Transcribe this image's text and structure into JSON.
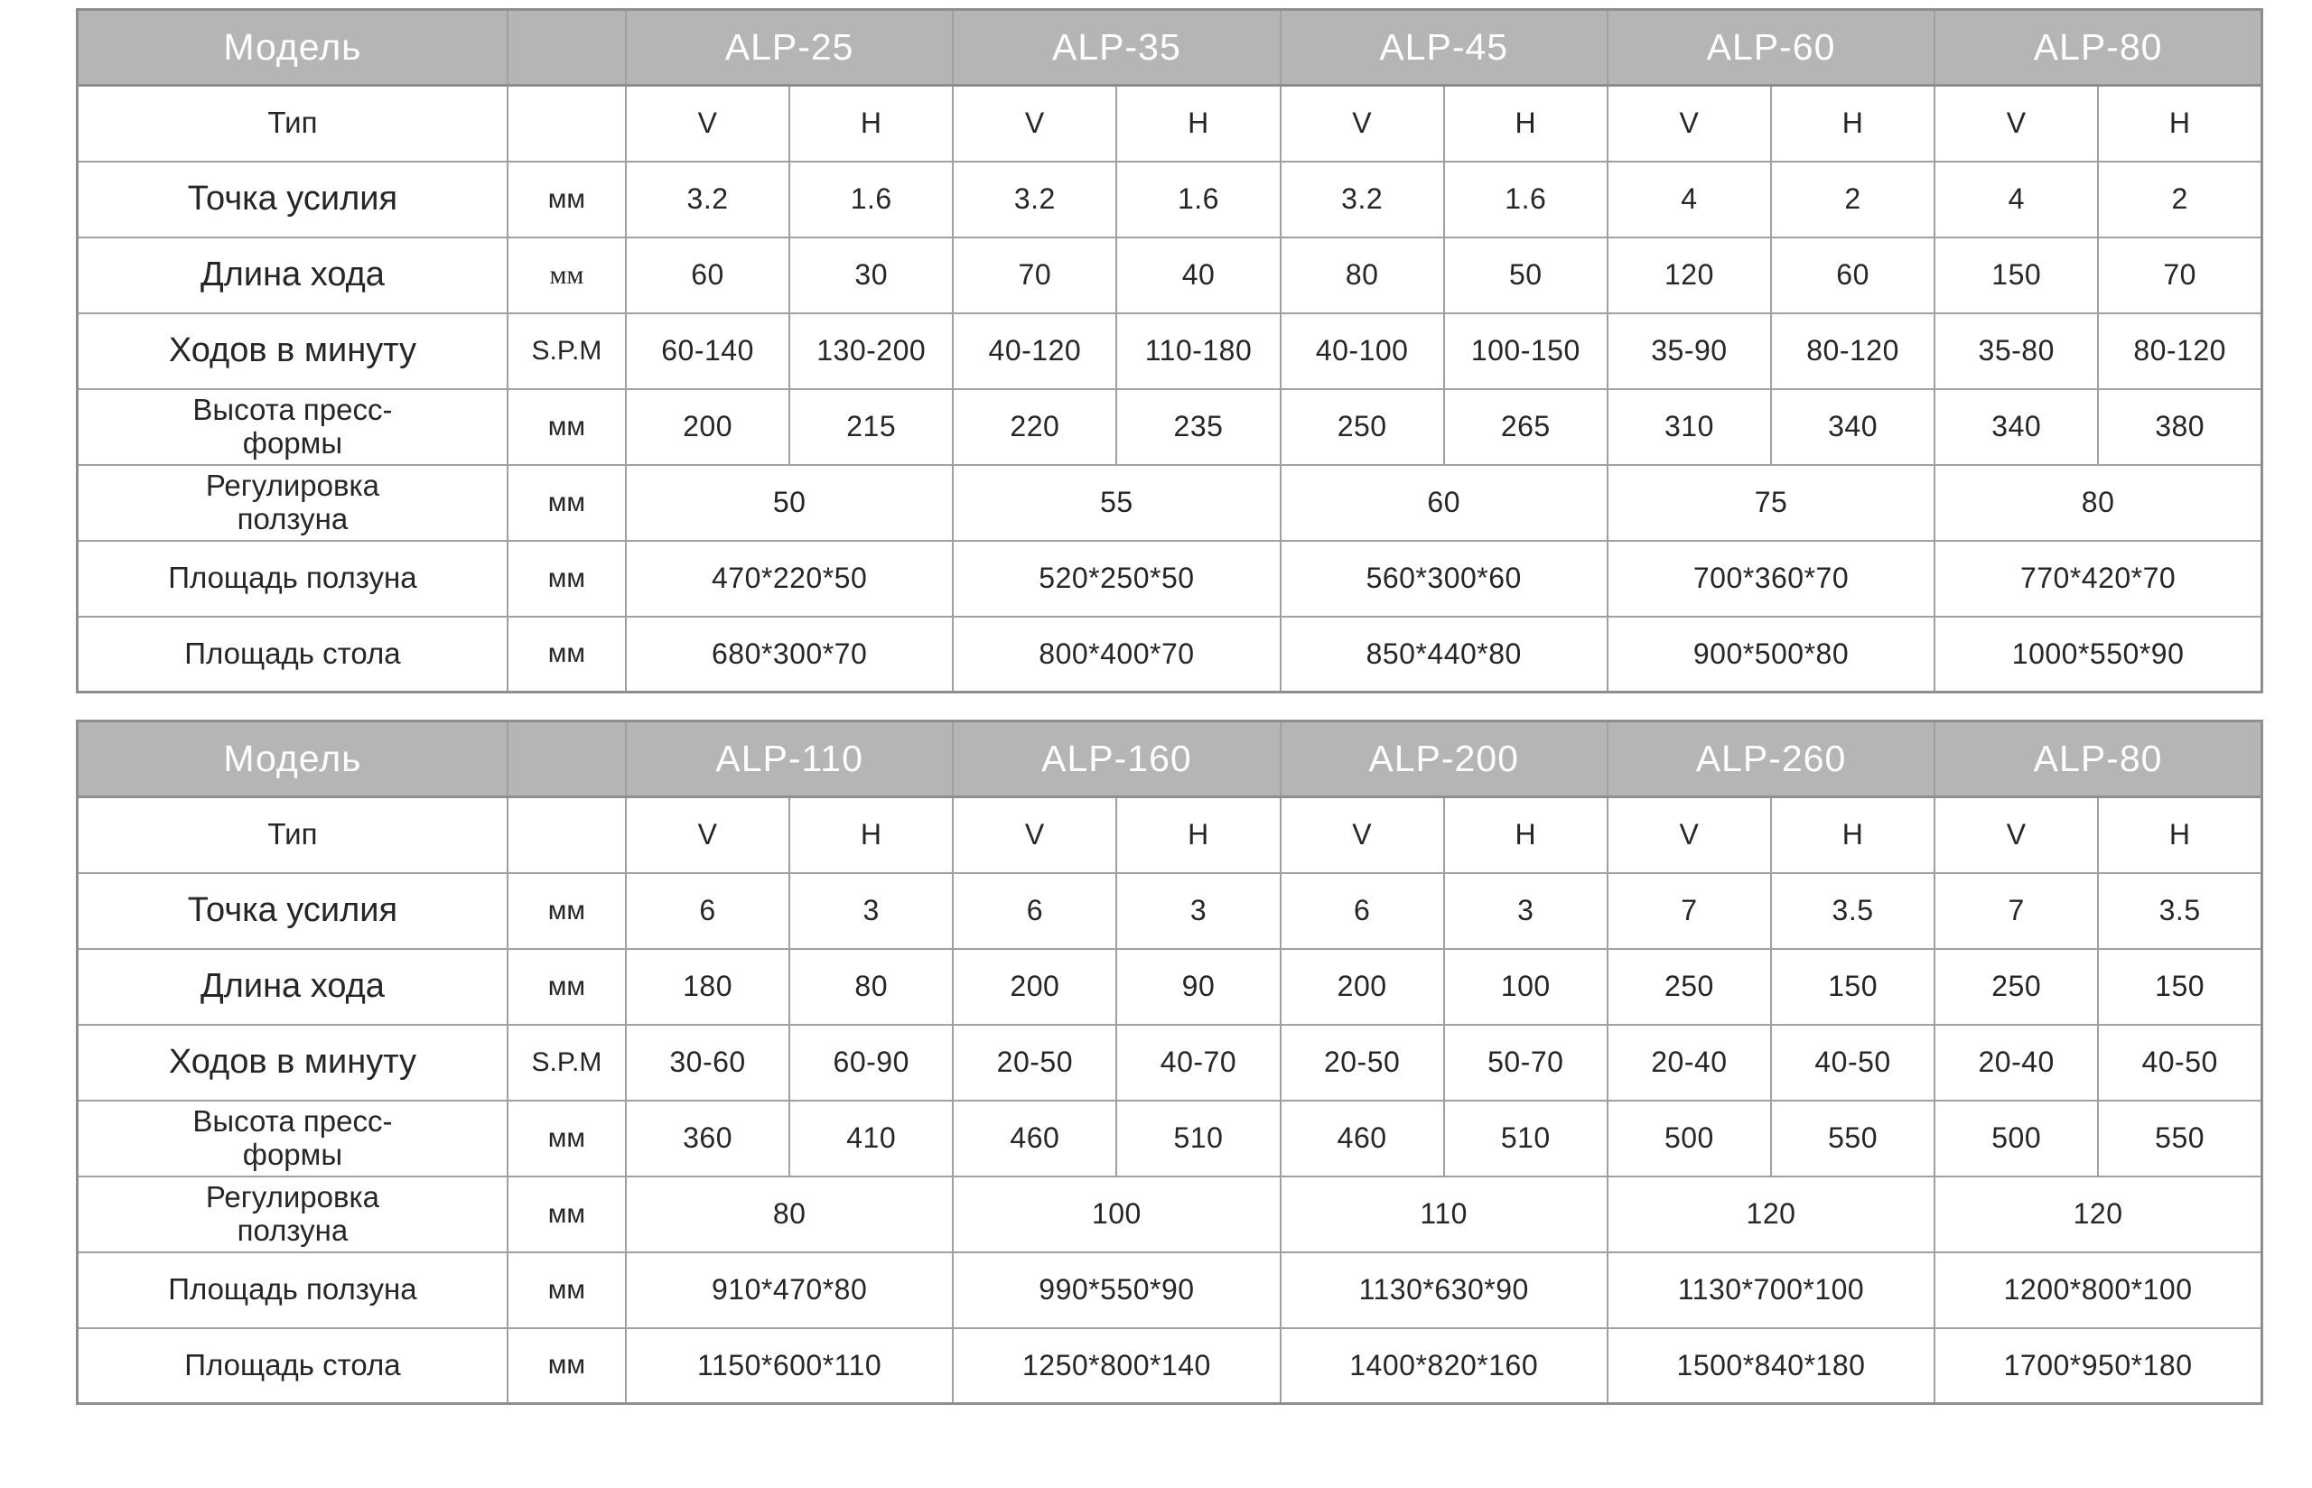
{
  "colors": {
    "header_bg": "#b5b5b5",
    "header_text": "#ffffff",
    "border": "#a0a0a0",
    "cell_text": "#262626"
  },
  "tables": [
    {
      "corner_label": "Модель",
      "unit_header": "",
      "models": [
        "ALP-25",
        "ALP-35",
        "ALP-45",
        "ALP-60",
        "ALP-80"
      ],
      "rows": [
        {
          "label": "Тип",
          "unit": "",
          "colspan": 1,
          "values": [
            "V",
            "H",
            "V",
            "H",
            "V",
            "H",
            "V",
            "H",
            "V",
            "H"
          ]
        },
        {
          "label": "Точка усилия",
          "unit": "мм",
          "colspan": 1,
          "values": [
            "3.2",
            "1.6",
            "3.2",
            "1.6",
            "3.2",
            "1.6",
            "4",
            "2",
            "4",
            "2"
          ]
        },
        {
          "label": "Длина хода",
          "unit": "мм",
          "colspan": 1,
          "values": [
            "60",
            "30",
            "70",
            "40",
            "80",
            "50",
            "120",
            "60",
            "150",
            "70"
          ]
        },
        {
          "label": "Ходов в минуту",
          "unit": "S.P.M",
          "colspan": 1,
          "values": [
            "60-140",
            "130-200",
            "40-120",
            "110-180",
            "40-100",
            "100-150",
            "35-90",
            "80-120",
            "35-80",
            "80-120"
          ]
        },
        {
          "label": "Высота пресс-\nформы",
          "unit": "мм",
          "colspan": 1,
          "values": [
            "200",
            "215",
            "220",
            "235",
            "250",
            "265",
            "310",
            "340",
            "340",
            "380"
          ]
        },
        {
          "label": "Регулировка\nползуна",
          "unit": "мм",
          "colspan": 2,
          "values": [
            "50",
            "55",
            "60",
            "75",
            "80"
          ]
        },
        {
          "label": "Площадь ползуна",
          "unit": "мм",
          "colspan": 2,
          "values": [
            "470*220*50",
            "520*250*50",
            "560*300*60",
            "700*360*70",
            "770*420*70"
          ]
        },
        {
          "label": "Площадь стола",
          "unit": "мм",
          "colspan": 2,
          "values": [
            "680*300*70",
            "800*400*70",
            "850*440*80",
            "900*500*80",
            "1000*550*90"
          ]
        }
      ]
    },
    {
      "corner_label": "Модель",
      "unit_header": "",
      "models": [
        "ALP-110",
        "ALP-160",
        "ALP-200",
        "ALP-260",
        "ALP-80"
      ],
      "rows": [
        {
          "label": "Тип",
          "unit": "",
          "colspan": 1,
          "values": [
            "V",
            "H",
            "V",
            "H",
            "V",
            "H",
            "V",
            "H",
            "V",
            "H"
          ]
        },
        {
          "label": "Точка усилия",
          "unit": "мм",
          "colspan": 1,
          "values": [
            "6",
            "3",
            "6",
            "3",
            "6",
            "3",
            "7",
            "3.5",
            "7",
            "3.5"
          ]
        },
        {
          "label": "Длина хода",
          "unit": "мм",
          "colspan": 1,
          "values": [
            "180",
            "80",
            "200",
            "90",
            "200",
            "100",
            "250",
            "150",
            "250",
            "150"
          ]
        },
        {
          "label": "Ходов в минуту",
          "unit": "S.P.M",
          "colspan": 1,
          "values": [
            "30-60",
            "60-90",
            "20-50",
            "40-70",
            "20-50",
            "50-70",
            "20-40",
            "40-50",
            "20-40",
            "40-50"
          ]
        },
        {
          "label": "Высота пресс-\nформы",
          "unit": "мм",
          "colspan": 1,
          "values": [
            "360",
            "410",
            "460",
            "510",
            "460",
            "510",
            "500",
            "550",
            "500",
            "550"
          ]
        },
        {
          "label": "Регулировка\nползуна",
          "unit": "мм",
          "colspan": 2,
          "values": [
            "80",
            "100",
            "110",
            "120",
            "120"
          ]
        },
        {
          "label": "Площадь ползуна",
          "unit": "мм",
          "colspan": 2,
          "values": [
            "910*470*80",
            "990*550*90",
            "1130*630*90",
            "1130*700*100",
            "1200*800*100"
          ]
        },
        {
          "label": "Площадь стола",
          "unit": "мм",
          "colspan": 2,
          "values": [
            "1150*600*110",
            "1250*800*140",
            "1400*820*160",
            "1500*840*180",
            "1700*950*180"
          ]
        }
      ]
    }
  ]
}
